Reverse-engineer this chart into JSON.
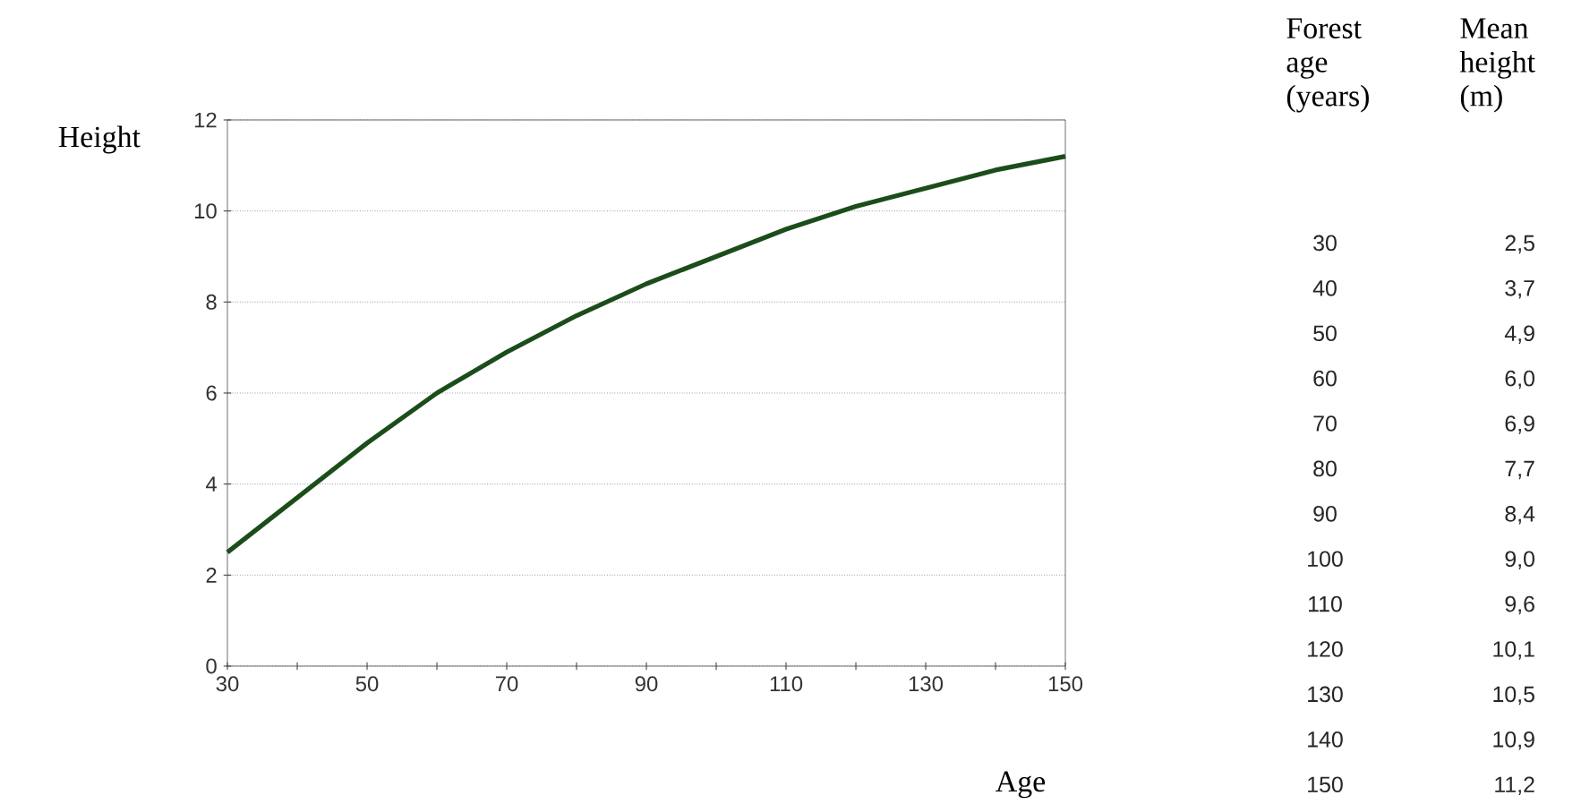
{
  "chart_data": {
    "type": "line",
    "xlabel": "Age",
    "ylabel": "Height",
    "x": [
      30,
      40,
      50,
      60,
      70,
      80,
      90,
      100,
      110,
      120,
      130,
      140,
      150
    ],
    "values": [
      2.5,
      3.7,
      4.9,
      6.0,
      6.9,
      7.7,
      8.4,
      9.0,
      9.6,
      10.1,
      10.5,
      10.9,
      11.2
    ],
    "color": "#1b4d1b",
    "line_style": "solid",
    "marker": "none",
    "xlim": [
      30,
      150
    ],
    "xticks": [
      30,
      {
        "value": 40,
        "label": null
      },
      50,
      {
        "value": 60,
        "label": null
      },
      70,
      {
        "value": 80,
        "label": null
      },
      90,
      {
        "value": 100,
        "label": null
      },
      110,
      {
        "value": 120,
        "label": null
      },
      130,
      {
        "value": 140,
        "label": null
      },
      150
    ],
    "ylim": [
      0,
      12
    ],
    "yticks": [
      0,
      2,
      4,
      6,
      8,
      10,
      12
    ],
    "grid": "y",
    "annotations": [
      "Forest age (years)",
      "Mean height (m)",
      "30",
      "2,5",
      "40",
      "3,7",
      "50",
      "4,9",
      "60",
      "6,0",
      "70",
      "6,9",
      "80",
      "7,7",
      "90",
      "8,4",
      "100",
      "9,0",
      "110",
      "9,6",
      "120",
      "10,1",
      "130",
      "10,5",
      "140",
      "10,9",
      "150",
      "11,2"
    ]
  }
}
